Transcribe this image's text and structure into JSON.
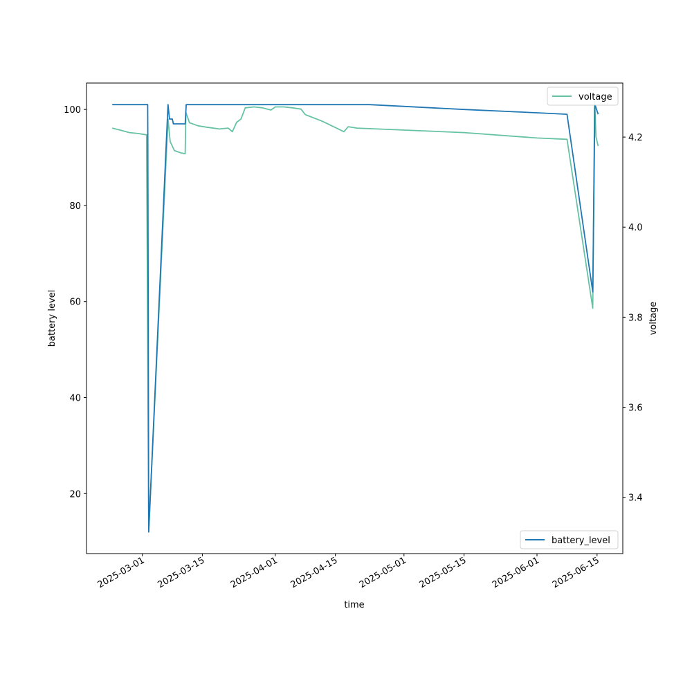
{
  "chart_data": {
    "type": "line",
    "xlabel": "time",
    "ylabel_left": "battery level",
    "ylabel_right": "voltage",
    "x_ticks": [
      "2025-03-01",
      "2025-03-15",
      "2025-04-01",
      "2025-04-15",
      "2025-05-01",
      "2025-05-15",
      "2025-06-01",
      "2025-06-15"
    ],
    "y_left_ticks": [
      20,
      40,
      60,
      80,
      100
    ],
    "y_right_ticks": [
      3.4,
      3.6,
      3.8,
      4.0,
      4.2
    ],
    "xlim": [
      "2025-02-16",
      "2025-06-21"
    ],
    "ylim_left": [
      7.5,
      105.5
    ],
    "ylim_right": [
      3.275,
      4.32
    ],
    "legend_left_position": "lower-right",
    "legend_right_position": "upper-right",
    "series": [
      {
        "name": "battery_level",
        "axis": "left",
        "color": "#1f77b4",
        "points": [
          [
            "2025-02-22",
            101
          ],
          [
            "2025-02-26",
            101
          ],
          [
            "2025-03-01",
            101
          ],
          [
            "2025-03-02 06:00",
            101
          ],
          [
            "2025-03-02 07:00",
            95
          ],
          [
            "2025-03-02 12:00",
            12
          ],
          [
            "2025-03-07 00:00",
            101
          ],
          [
            "2025-03-07 08:00",
            98
          ],
          [
            "2025-03-08 00:00",
            98
          ],
          [
            "2025-03-08 06:00",
            97
          ],
          [
            "2025-03-09 00:00",
            97
          ],
          [
            "2025-03-10 00:00",
            97
          ],
          [
            "2025-03-11 00:00",
            97
          ],
          [
            "2025-03-11 06:00",
            101
          ],
          [
            "2025-03-20",
            101
          ],
          [
            "2025-04-01",
            101
          ],
          [
            "2025-04-15",
            101
          ],
          [
            "2025-04-23",
            101
          ],
          [
            "2025-05-15",
            100
          ],
          [
            "2025-06-01",
            99.3
          ],
          [
            "2025-06-08",
            99
          ],
          [
            "2025-06-14 00:00",
            62
          ],
          [
            "2025-06-14 12:00",
            101
          ],
          [
            "2025-06-15 06:00",
            99
          ]
        ]
      },
      {
        "name": "voltage",
        "axis": "right",
        "color": "#66c2a5",
        "points": [
          [
            "2025-02-22",
            4.22
          ],
          [
            "2025-02-24",
            4.215
          ],
          [
            "2025-02-26",
            4.21
          ],
          [
            "2025-02-28",
            4.208
          ],
          [
            "2025-03-02 00:00",
            4.205
          ],
          [
            "2025-03-02 12:00",
            3.325
          ],
          [
            "2025-03-07 00:00",
            4.24
          ],
          [
            "2025-03-07 12:00",
            4.19
          ],
          [
            "2025-03-08 12:00",
            4.17
          ],
          [
            "2025-03-10 00:00",
            4.165
          ],
          [
            "2025-03-11 00:00",
            4.163
          ],
          [
            "2025-03-11 04:00",
            4.255
          ],
          [
            "2025-03-12",
            4.232
          ],
          [
            "2025-03-14",
            4.225
          ],
          [
            "2025-03-16",
            4.222
          ],
          [
            "2025-03-19",
            4.218
          ],
          [
            "2025-03-21",
            4.22
          ],
          [
            "2025-03-22",
            4.212
          ],
          [
            "2025-03-23",
            4.233
          ],
          [
            "2025-03-24",
            4.24
          ],
          [
            "2025-03-25",
            4.265
          ],
          [
            "2025-03-27",
            4.267
          ],
          [
            "2025-03-29",
            4.265
          ],
          [
            "2025-03-31",
            4.26
          ],
          [
            "2025-04-01",
            4.267
          ],
          [
            "2025-04-03",
            4.267
          ],
          [
            "2025-04-05",
            4.265
          ],
          [
            "2025-04-07",
            4.262
          ],
          [
            "2025-04-08",
            4.25
          ],
          [
            "2025-04-12",
            4.235
          ],
          [
            "2025-04-17",
            4.212
          ],
          [
            "2025-04-18",
            4.223
          ],
          [
            "2025-04-20",
            4.22
          ],
          [
            "2025-05-15",
            4.21
          ],
          [
            "2025-06-01",
            4.198
          ],
          [
            "2025-06-08",
            4.195
          ],
          [
            "2025-06-14 00:00",
            3.82
          ],
          [
            "2025-06-14 10:00",
            4.28
          ],
          [
            "2025-06-14 18:00",
            4.2
          ],
          [
            "2025-06-15 06:00",
            4.18
          ]
        ]
      }
    ]
  }
}
